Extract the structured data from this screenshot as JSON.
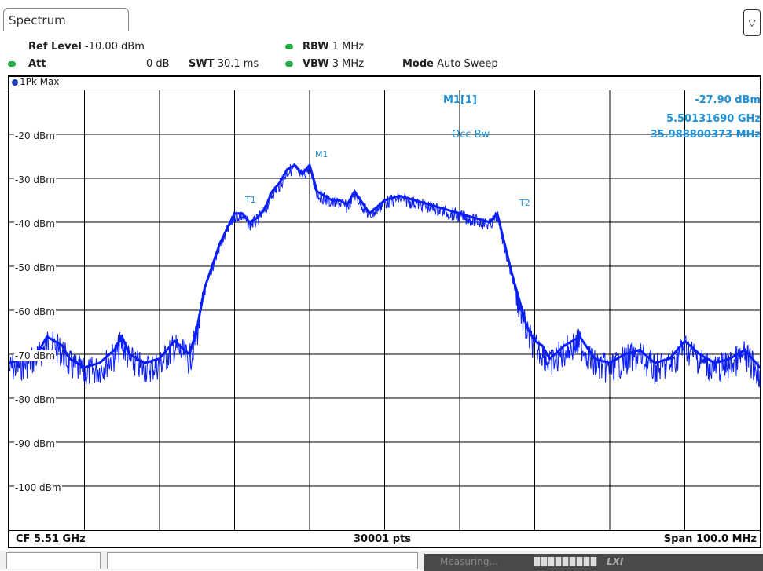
{
  "colors": {
    "trace": "#0a1ef5",
    "marker_text": "#1e90d8",
    "status_dot": "#22aa44"
  },
  "tab": {
    "label": "Spectrum"
  },
  "settings": {
    "ref_level_label": "Ref Level",
    "ref_level_value": "-10.00 dBm",
    "att_label": "Att",
    "att_value": "0 dB",
    "swt_label": "SWT",
    "swt_value": "30.1 ms",
    "rbw_label": "RBW",
    "rbw_value": "1 MHz",
    "vbw_label": "VBW",
    "vbw_value": "3 MHz",
    "mode_label": "Mode",
    "mode_value": "Auto Sweep"
  },
  "trace_label": "1Pk Max",
  "marker_table": {
    "m1_label": "M1[1]",
    "m1_level": "-27.90 dBm",
    "m1_freq": "5.50131690 GHz",
    "occbw_label": "Occ Bw",
    "occbw_value": "35.988800373 MHz"
  },
  "y_labels": [
    "-20 dBm",
    "-30 dBm",
    "-40 dBm",
    "-50 dBm",
    "-60 dBm",
    "-70 dBm",
    "-80 dBm",
    "-90 dBm",
    "-100 dBm"
  ],
  "marker_tags": {
    "t1": "T1",
    "t2": "T2",
    "m1": "M1"
  },
  "footer": {
    "center_freq": "CF 5.51 GHz",
    "points": "30001 pts",
    "span": "Span 100.0 MHz"
  },
  "status": {
    "text": "Measuring...",
    "right_icon_text": "LXI"
  },
  "chart_data": {
    "type": "line",
    "x_unit": "MHz offset from CF 5.51 GHz",
    "xlim": [
      -50,
      50
    ],
    "ylim": [
      -110,
      -10
    ],
    "y_unit": "dBm",
    "grid": true,
    "series": [
      {
        "name": "1Pk Max",
        "x": [
          -50,
          -48,
          -46,
          -45,
          -43,
          -42,
          -40,
          -38,
          -36,
          -35,
          -34,
          -32,
          -30,
          -28,
          -26,
          -25,
          -24,
          -22,
          -20,
          -19,
          -18,
          -17,
          -16,
          -15,
          -14,
          -13,
          -12,
          -11,
          -10,
          -9,
          -8,
          -7,
          -6,
          -5,
          -4,
          -2,
          0,
          2,
          4,
          6,
          8,
          10,
          12,
          14,
          15,
          16,
          17,
          18,
          19,
          20,
          21,
          22,
          24,
          26,
          28,
          30,
          32,
          34,
          36,
          38,
          40,
          42,
          44,
          46,
          48,
          50
        ],
        "y": [
          -72,
          -71,
          -69,
          -66,
          -68,
          -71,
          -73,
          -72,
          -69,
          -66,
          -70,
          -72,
          -71,
          -67,
          -70,
          -64,
          -55,
          -45,
          -38,
          -38,
          -40,
          -39,
          -37,
          -33,
          -31,
          -28,
          -27,
          -29,
          -27,
          -33,
          -34,
          -35,
          -35,
          -36,
          -33,
          -38,
          -35,
          -34,
          -35,
          -36,
          -37,
          -38,
          -39,
          -40,
          -38,
          -45,
          -52,
          -58,
          -64,
          -67,
          -68,
          -71,
          -68,
          -66,
          -71,
          -72,
          -70,
          -69,
          -72,
          -71,
          -67,
          -70,
          -72,
          -71,
          -69,
          -73
        ]
      }
    ]
  }
}
